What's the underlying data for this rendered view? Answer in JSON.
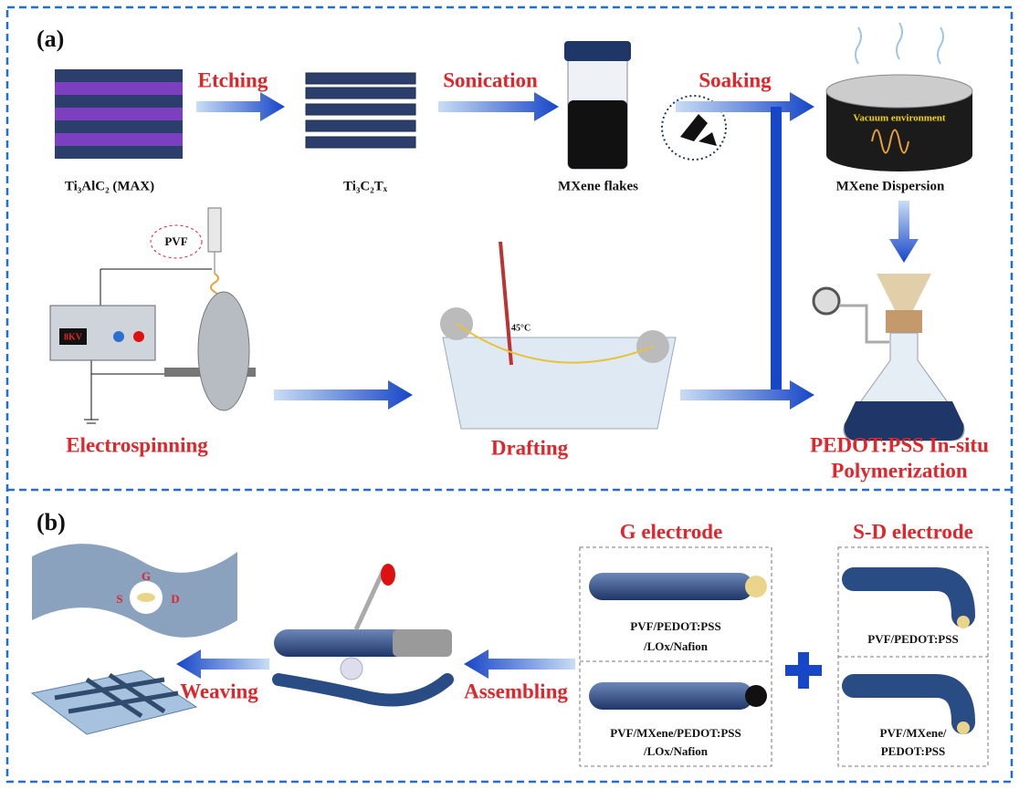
{
  "panel_a": {
    "label": "(a)",
    "arrows": [
      "Etching",
      "Sonication",
      "Soaking"
    ],
    "materials": [
      "Ti₃AlC₂ (MAX)",
      "Ti₃C₂Tₓ",
      "MXene flakes",
      "MXene Dispersion"
    ],
    "vacuum": "Vacuum environment",
    "polymer": "PVF",
    "voltage": "8KV",
    "temperature": "45°C",
    "processes": [
      "Electrospinning",
      "Drafting"
    ],
    "polymerization": [
      "PEDOT:PSS In-situ",
      "Polymerization"
    ]
  },
  "panel_b": {
    "label": "(b)",
    "g_electrode": {
      "title": "G electrode",
      "items": [
        [
          "PVF/PEDOT:PSS",
          "/LOx/Nafion"
        ],
        [
          "PVF/MXene/PEDOT:PSS",
          "/LOx/Nafion"
        ]
      ]
    },
    "sd_electrode": {
      "title": "S-D electrode",
      "items": [
        [
          "PVF/PEDOT:PSS"
        ],
        [
          "PVF/MXene/",
          "PEDOT:PSS"
        ]
      ]
    },
    "processes": [
      "Assembling",
      "Weaving"
    ],
    "terminals": [
      "G",
      "S",
      "D"
    ]
  }
}
